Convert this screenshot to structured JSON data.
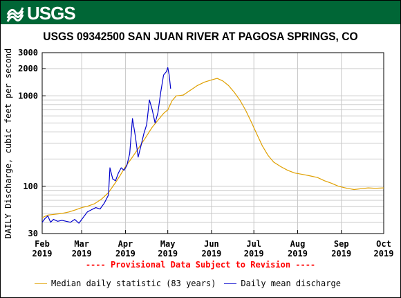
{
  "header": {
    "logo_text": "USGS",
    "brand_color": "#006636"
  },
  "chart_data": {
    "type": "line",
    "title": "USGS 09342500 SAN JUAN RIVER AT PAGOSA SPRINGS, CO",
    "ylabel": "DAILY Discharge, cubic feet per second",
    "xlabel": "",
    "yscale": "log",
    "ylim": [
      30,
      3000
    ],
    "xlim": [
      "2019-02-01",
      "2019-10-01"
    ],
    "grid": true,
    "y_ticks": [
      30,
      100,
      1000,
      2000,
      3000
    ],
    "x_ticks": [
      {
        "date": "2019-02-01",
        "month": "Feb",
        "year": "2019"
      },
      {
        "date": "2019-03-01",
        "month": "Mar",
        "year": "2019"
      },
      {
        "date": "2019-04-01",
        "month": "Apr",
        "year": "2019"
      },
      {
        "date": "2019-05-01",
        "month": "May",
        "year": "2019"
      },
      {
        "date": "2019-06-01",
        "month": "Jun",
        "year": "2019"
      },
      {
        "date": "2019-07-01",
        "month": "Jul",
        "year": "2019"
      },
      {
        "date": "2019-08-01",
        "month": "Aug",
        "year": "2019"
      },
      {
        "date": "2019-09-01",
        "month": "Sep",
        "year": "2019"
      },
      {
        "date": "2019-10-01",
        "month": "Oct",
        "year": "2019"
      }
    ],
    "annotation": "---- Provisional Data Subject to Revision ----",
    "legend_position": "bottom",
    "series": [
      {
        "name": "Median daily statistic (83 years)",
        "color": "#e0a000",
        "points": [
          [
            "2019-02-01",
            45
          ],
          [
            "2019-02-05",
            48
          ],
          [
            "2019-02-10",
            49
          ],
          [
            "2019-02-15",
            50
          ],
          [
            "2019-02-20",
            52
          ],
          [
            "2019-02-25",
            55
          ],
          [
            "2019-03-01",
            58
          ],
          [
            "2019-03-05",
            60
          ],
          [
            "2019-03-10",
            64
          ],
          [
            "2019-03-15",
            72
          ],
          [
            "2019-03-20",
            85
          ],
          [
            "2019-03-25",
            110
          ],
          [
            "2019-03-28",
            130
          ],
          [
            "2019-04-01",
            165
          ],
          [
            "2019-04-05",
            200
          ],
          [
            "2019-04-10",
            260
          ],
          [
            "2019-04-15",
            340
          ],
          [
            "2019-04-20",
            450
          ],
          [
            "2019-04-25",
            560
          ],
          [
            "2019-04-28",
            640
          ],
          [
            "2019-05-01",
            700
          ],
          [
            "2019-05-04",
            880
          ],
          [
            "2019-05-07",
            1000
          ],
          [
            "2019-05-12",
            1020
          ],
          [
            "2019-05-17",
            1150
          ],
          [
            "2019-05-22",
            1300
          ],
          [
            "2019-05-27",
            1420
          ],
          [
            "2019-06-01",
            1500
          ],
          [
            "2019-06-05",
            1560
          ],
          [
            "2019-06-09",
            1460
          ],
          [
            "2019-06-13",
            1300
          ],
          [
            "2019-06-17",
            1100
          ],
          [
            "2019-06-21",
            900
          ],
          [
            "2019-06-25",
            700
          ],
          [
            "2019-06-29",
            520
          ],
          [
            "2019-07-03",
            380
          ],
          [
            "2019-07-07",
            280
          ],
          [
            "2019-07-11",
            220
          ],
          [
            "2019-07-15",
            185
          ],
          [
            "2019-07-20",
            165
          ],
          [
            "2019-07-25",
            150
          ],
          [
            "2019-07-30",
            140
          ],
          [
            "2019-08-05",
            135
          ],
          [
            "2019-08-10",
            130
          ],
          [
            "2019-08-15",
            125
          ],
          [
            "2019-08-20",
            115
          ],
          [
            "2019-08-25",
            108
          ],
          [
            "2019-08-30",
            100
          ],
          [
            "2019-09-05",
            95
          ],
          [
            "2019-09-10",
            92
          ],
          [
            "2019-09-15",
            94
          ],
          [
            "2019-09-20",
            96
          ],
          [
            "2019-09-25",
            95
          ],
          [
            "2019-10-01",
            96
          ]
        ]
      },
      {
        "name": "Daily mean discharge",
        "color": "#0000cc",
        "points": [
          [
            "2019-02-01",
            40
          ],
          [
            "2019-02-03",
            44
          ],
          [
            "2019-02-05",
            47
          ],
          [
            "2019-02-07",
            40
          ],
          [
            "2019-02-09",
            43
          ],
          [
            "2019-02-12",
            41
          ],
          [
            "2019-02-15",
            42
          ],
          [
            "2019-02-18",
            41
          ],
          [
            "2019-02-21",
            40
          ],
          [
            "2019-02-24",
            43
          ],
          [
            "2019-02-27",
            39
          ],
          [
            "2019-03-02",
            45
          ],
          [
            "2019-03-05",
            52
          ],
          [
            "2019-03-08",
            55
          ],
          [
            "2019-03-11",
            58
          ],
          [
            "2019-03-14",
            56
          ],
          [
            "2019-03-17",
            65
          ],
          [
            "2019-03-20",
            80
          ],
          [
            "2019-03-21",
            160
          ],
          [
            "2019-03-23",
            120
          ],
          [
            "2019-03-25",
            115
          ],
          [
            "2019-03-27",
            140
          ],
          [
            "2019-03-29",
            160
          ],
          [
            "2019-03-31",
            150
          ],
          [
            "2019-04-02",
            170
          ],
          [
            "2019-04-04",
            230
          ],
          [
            "2019-04-06",
            560
          ],
          [
            "2019-04-08",
            360
          ],
          [
            "2019-04-10",
            210
          ],
          [
            "2019-04-12",
            280
          ],
          [
            "2019-04-14",
            380
          ],
          [
            "2019-04-16",
            480
          ],
          [
            "2019-04-18",
            900
          ],
          [
            "2019-04-20",
            700
          ],
          [
            "2019-04-22",
            500
          ],
          [
            "2019-04-24",
            650
          ],
          [
            "2019-04-26",
            1100
          ],
          [
            "2019-04-28",
            1700
          ],
          [
            "2019-04-30",
            1850
          ],
          [
            "2019-05-01",
            2050
          ],
          [
            "2019-05-02",
            1700
          ],
          [
            "2019-05-03",
            1200
          ]
        ]
      }
    ]
  }
}
